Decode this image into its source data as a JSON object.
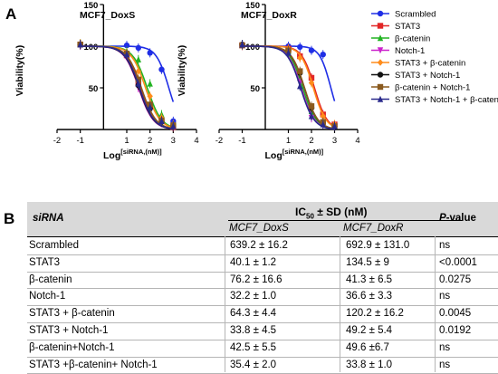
{
  "panel_a_label": "A",
  "panel_b_label": "B",
  "chart_data": [
    {
      "type": "line",
      "title": "MCF7_DoxS",
      "xlabel": "Log[siRNA,(nM)]",
      "ylabel": "Viability(%)",
      "xlim": [
        -2,
        4
      ],
      "ylim": [
        0,
        150
      ],
      "xticks": [
        "-2",
        "-1",
        "1",
        "2",
        "3",
        "4"
      ],
      "yticks": [
        "50",
        "100",
        "150"
      ],
      "series": [
        {
          "name": "Scrambled",
          "color": "#1f2ee6",
          "marker": "circle",
          "ic50": 2.81,
          "hill": -1.6,
          "points": [
            [
              -1,
              102
            ],
            [
              1,
              101
            ],
            [
              1.5,
              98
            ],
            [
              2,
              92
            ],
            [
              2.5,
              72
            ],
            [
              3,
              10
            ]
          ]
        },
        {
          "name": "STAT3",
          "color": "#e22626",
          "marker": "square",
          "ic50": 1.6,
          "hill": -1.4,
          "points": [
            [
              -1,
              102
            ],
            [
              1,
              89
            ],
            [
              1.5,
              55
            ],
            [
              2,
              28
            ],
            [
              2.5,
              10
            ],
            [
              3,
              3
            ]
          ]
        },
        {
          "name": "β-catenin",
          "color": "#22b322",
          "marker": "triangle",
          "ic50": 1.88,
          "hill": -1.4,
          "points": [
            [
              -1,
              103
            ],
            [
              1,
              94
            ],
            [
              1.5,
              84
            ],
            [
              2,
              55
            ],
            [
              2.5,
              18
            ],
            [
              3,
              6
            ]
          ]
        },
        {
          "name": "Notch-1",
          "color": "#cc22cc",
          "marker": "triangle-down",
          "ic50": 1.51,
          "hill": -1.4,
          "points": [
            [
              -1,
              101
            ],
            [
              1,
              88
            ],
            [
              1.5,
              50
            ],
            [
              2,
              22
            ],
            [
              2.5,
              8
            ],
            [
              3,
              4
            ]
          ]
        },
        {
          "name": "STAT3 + β-catenin",
          "color": "#ff8c1a",
          "marker": "diamond",
          "ic50": 1.81,
          "hill": -1.4,
          "points": [
            [
              -1,
              103
            ],
            [
              1,
              92
            ],
            [
              1.5,
              70
            ],
            [
              2,
              40
            ],
            [
              2.5,
              14
            ],
            [
              3,
              6
            ]
          ]
        },
        {
          "name": "STAT3 + Notch-1",
          "color": "#111111",
          "marker": "circle",
          "ic50": 1.53,
          "hill": -1.4,
          "points": [
            [
              -1,
              102
            ],
            [
              1,
              90
            ],
            [
              1.5,
              53
            ],
            [
              2,
              25
            ],
            [
              2.5,
              9
            ],
            [
              3,
              4
            ]
          ]
        },
        {
          "name": "β-catenin + Notch-1",
          "color": "#8a5a1e",
          "marker": "square",
          "ic50": 1.63,
          "hill": -1.4,
          "points": [
            [
              -1,
              102
            ],
            [
              1,
              91
            ],
            [
              1.5,
              60
            ],
            [
              2,
              30
            ],
            [
              2.5,
              11
            ],
            [
              3,
              5
            ]
          ]
        },
        {
          "name": "STAT3 + Notch-1 + β-catenin",
          "color": "#2a2a8c",
          "marker": "triangle",
          "ic50": 1.55,
          "hill": -1.4,
          "points": [
            [
              -1,
              102
            ],
            [
              1,
              90
            ],
            [
              1.5,
              55
            ],
            [
              2,
              27
            ],
            [
              2.5,
              10
            ],
            [
              3,
              4
            ]
          ]
        }
      ]
    },
    {
      "type": "line",
      "title": "MCF7_DoxR",
      "xlabel": "Log[siRNA,(nM)]",
      "ylabel": "Viability(%)",
      "xlim": [
        -2,
        4
      ],
      "ylim": [
        0,
        150
      ],
      "xticks": [
        "-2",
        "-1",
        "1",
        "2",
        "3",
        "4"
      ],
      "yticks": [
        "50",
        "100",
        "150"
      ],
      "series": [
        {
          "name": "Scrambled",
          "color": "#1f2ee6",
          "marker": "circle",
          "ic50": 2.84,
          "hill": -1.8,
          "points": [
            [
              -1,
              101
            ],
            [
              1,
              100
            ],
            [
              1.5,
              99
            ],
            [
              2,
              95
            ],
            [
              2.5,
              90
            ],
            [
              3,
              6
            ]
          ]
        },
        {
          "name": "STAT3",
          "color": "#e22626",
          "marker": "square",
          "ic50": 2.13,
          "hill": -1.6,
          "points": [
            [
              -1,
              101
            ],
            [
              1,
              97
            ],
            [
              1.5,
              88
            ],
            [
              2,
              62
            ],
            [
              2.5,
              18
            ],
            [
              3,
              6
            ]
          ]
        },
        {
          "name": "β-catenin",
          "color": "#22b322",
          "marker": "triangle",
          "ic50": 1.62,
          "hill": -1.5,
          "points": [
            [
              -1,
              102
            ],
            [
              1,
              94
            ],
            [
              1.5,
              62
            ],
            [
              2,
              22
            ],
            [
              2.5,
              8
            ],
            [
              3,
              4
            ]
          ]
        },
        {
          "name": "Notch-1",
          "color": "#cc22cc",
          "marker": "triangle-down",
          "ic50": 1.56,
          "hill": -1.5,
          "points": [
            [
              -1,
              101
            ],
            [
              1,
              93
            ],
            [
              1.5,
              56
            ],
            [
              2,
              14
            ],
            [
              2.5,
              6
            ],
            [
              3,
              4
            ]
          ]
        },
        {
          "name": "STAT3 + β-catenin",
          "color": "#ff8c1a",
          "marker": "diamond",
          "ic50": 2.08,
          "hill": -1.6,
          "points": [
            [
              -1,
              101
            ],
            [
              1,
              97
            ],
            [
              1.5,
              86
            ],
            [
              2,
              56
            ],
            [
              2.5,
              16
            ],
            [
              3,
              6
            ]
          ]
        },
        {
          "name": "STAT3 + Notch-1",
          "color": "#111111",
          "marker": "circle",
          "ic50": 1.69,
          "hill": -1.5,
          "points": [
            [
              -1,
              102
            ],
            [
              1,
              95
            ],
            [
              1.5,
              68
            ],
            [
              2,
              26
            ],
            [
              2.5,
              8
            ],
            [
              3,
              4
            ]
          ]
        },
        {
          "name": "β-catenin + Notch-1",
          "color": "#8a5a1e",
          "marker": "square",
          "ic50": 1.7,
          "hill": -1.5,
          "points": [
            [
              -1,
              101
            ],
            [
              1,
              95
            ],
            [
              1.5,
              70
            ],
            [
              2,
              28
            ],
            [
              2.5,
              9
            ],
            [
              3,
              4
            ]
          ]
        },
        {
          "name": "STAT3 + Notch-1 + β-catenin",
          "color": "#2a2a8c",
          "marker": "triangle",
          "ic50": 1.53,
          "hill": -1.5,
          "points": [
            [
              -1,
              102
            ],
            [
              1,
              92
            ],
            [
              1.5,
              52
            ],
            [
              2,
              16
            ],
            [
              2.5,
              6
            ],
            [
              3,
              4
            ]
          ]
        }
      ]
    }
  ],
  "table": {
    "siRNA_header": "siRNA",
    "ic50_header_prefix": "IC",
    "ic50_header_sub": "50",
    "ic50_header_suffix": " ± SD (nM)",
    "col_doxs": "MCF7_DoxS",
    "col_doxr": "MCF7_DoxR",
    "p_header_bold": "P",
    "p_header_rest": "-value",
    "rows": [
      {
        "name": "Scrambled",
        "doxs": "639.2 ± 16.2",
        "doxr": "692.9 ±  131.0",
        "p": "ns"
      },
      {
        "name": "STAT3",
        "doxs": "40.1 ±  1.2",
        "doxr": "134.5 ± 9",
        "p": "<0.0001"
      },
      {
        "name": "β-catenin",
        "doxs": "76.2 ± 16.6",
        "doxr": "41.3 ± 6.5",
        "p": "0.0275"
      },
      {
        "name": "Notch-1",
        "doxs": "32.2 ± 1.0",
        "doxr": "36.6 ± 3.3",
        "p": "ns"
      },
      {
        "name": "STAT3 + β-catenin",
        "doxs": "64.3 ± 4.4",
        "doxr": "120.2 ± 16.2",
        "p": "0.0045"
      },
      {
        "name": "STAT3 + Notch-1",
        "doxs": "33.8 ± 4.5",
        "doxr": "49.2 ± 5.4",
        "p": "0.0192"
      },
      {
        "name": "β-catenin+Notch-1",
        "doxs": "42.5 ± 5.5",
        "doxr": "49.6 ±6.7",
        "p": "ns"
      },
      {
        "name": "STAT3 +β-catenin+ Notch-1",
        "doxs": "35.4 ± 2.0",
        "doxr": "33.8 ± 1.0",
        "p": "ns"
      }
    ]
  }
}
